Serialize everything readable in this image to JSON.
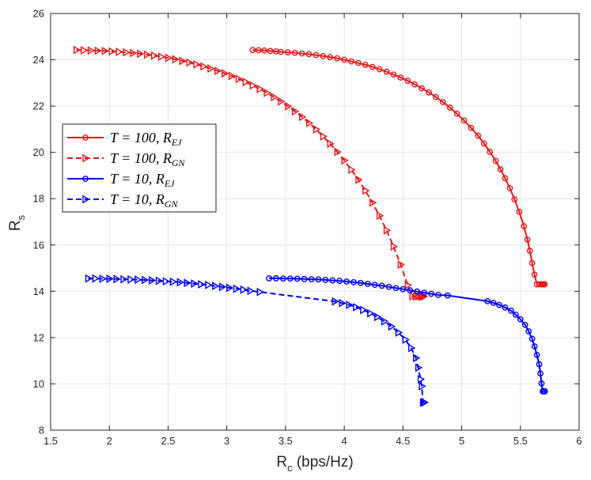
{
  "chart_data": {
    "type": "line",
    "xlabel": {
      "main": "R",
      "sub": "c",
      "suffix": " (bps/Hz)"
    },
    "ylabel": {
      "main": "R",
      "sub": "s"
    },
    "xlim": [
      1.5,
      6
    ],
    "ylim": [
      8,
      26
    ],
    "xticks": [
      1.5,
      2,
      2.5,
      3,
      3.5,
      4,
      4.5,
      5,
      5.5,
      6
    ],
    "xtick_labels": [
      "1.5",
      "2",
      "2.5",
      "3",
      "3.5",
      "4",
      "4.5",
      "5",
      "5.5",
      "6"
    ],
    "yticks": [
      8,
      10,
      12,
      14,
      16,
      18,
      20,
      22,
      24,
      26
    ],
    "ytick_labels": [
      "8",
      "10",
      "12",
      "14",
      "16",
      "18",
      "20",
      "22",
      "24",
      "26"
    ],
    "grid": true,
    "legend_position": "middle-left",
    "series": [
      {
        "label_prefix": "T = 100, R",
        "label_sub": "EJ",
        "color": "#e31a1c",
        "dash": "solid",
        "marker": "circle",
        "x": [
          3.22,
          3.27,
          3.32,
          3.37,
          3.42,
          3.46,
          3.52,
          3.58,
          3.64,
          3.7,
          3.76,
          3.82,
          3.88,
          3.94,
          4.0,
          4.06,
          4.12,
          4.18,
          4.24,
          4.3,
          4.36,
          4.42,
          4.48,
          4.54,
          4.6,
          4.66,
          4.72,
          4.78,
          4.84,
          4.9,
          4.96,
          5.02,
          5.08,
          5.14,
          5.19,
          5.24,
          5.29,
          5.33,
          5.37,
          5.41,
          5.45,
          5.49,
          5.53,
          5.56,
          5.58,
          5.6,
          5.62,
          5.64,
          5.66,
          5.68,
          5.69,
          5.7,
          5.703,
          5.705,
          5.706
        ],
        "y": [
          24.42,
          24.41,
          24.4,
          24.38,
          24.36,
          24.34,
          24.32,
          24.3,
          24.27,
          24.24,
          24.2,
          24.16,
          24.11,
          24.06,
          24.0,
          23.93,
          23.86,
          23.78,
          23.69,
          23.59,
          23.48,
          23.36,
          23.23,
          23.09,
          22.94,
          22.77,
          22.59,
          22.39,
          22.17,
          21.93,
          21.67,
          21.38,
          21.06,
          20.72,
          20.38,
          20.02,
          19.63,
          19.27,
          18.88,
          18.45,
          17.97,
          17.43,
          16.81,
          16.23,
          15.75,
          15.22,
          14.72,
          14.3,
          14.3,
          14.3,
          14.3,
          14.3,
          14.3,
          14.3,
          14.3
        ]
      },
      {
        "label_prefix": "T = 100, R",
        "label_sub": "GN",
        "color": "#e31a1c",
        "dash": "dashed",
        "marker": "triangle-right",
        "x": [
          1.72,
          1.78,
          1.84,
          1.9,
          1.96,
          2.02,
          2.08,
          2.14,
          2.2,
          2.26,
          2.32,
          2.38,
          2.44,
          2.5,
          2.56,
          2.62,
          2.68,
          2.74,
          2.8,
          2.86,
          2.92,
          2.98,
          3.04,
          3.1,
          3.16,
          3.22,
          3.28,
          3.34,
          3.4,
          3.46,
          3.52,
          3.58,
          3.64,
          3.7,
          3.76,
          3.82,
          3.88,
          3.94,
          4.0,
          4.06,
          4.12,
          4.18,
          4.24,
          4.3,
          4.36,
          4.42,
          4.48,
          4.54,
          4.58,
          4.61,
          4.63,
          4.65,
          4.66,
          4.67,
          4.675,
          4.678
        ],
        "y": [
          24.42,
          24.41,
          24.4,
          24.39,
          24.38,
          24.36,
          24.34,
          24.32,
          24.29,
          24.26,
          24.22,
          24.18,
          24.13,
          24.08,
          24.02,
          23.95,
          23.88,
          23.8,
          23.71,
          23.62,
          23.52,
          23.41,
          23.3,
          23.17,
          23.04,
          22.89,
          22.74,
          22.57,
          22.39,
          22.2,
          21.99,
          21.77,
          21.53,
          21.27,
          20.99,
          20.69,
          20.37,
          20.02,
          19.65,
          19.25,
          18.82,
          18.35,
          17.83,
          17.26,
          16.63,
          15.93,
          15.15,
          14.27,
          13.78,
          13.78,
          13.78,
          13.78,
          13.78,
          13.78,
          13.78,
          13.78
        ]
      },
      {
        "label_prefix": "T = 10, R",
        "label_sub": "EJ",
        "color": "#0000ff",
        "dash": "solid",
        "marker": "circle",
        "x": [
          3.36,
          3.42,
          3.48,
          3.54,
          3.6,
          3.66,
          3.72,
          3.78,
          3.84,
          3.9,
          3.96,
          4.02,
          4.08,
          4.14,
          4.2,
          4.26,
          4.32,
          4.38,
          4.44,
          4.5,
          4.56,
          4.62,
          4.68,
          4.74,
          4.8,
          4.88,
          5.22,
          5.27,
          5.32,
          5.37,
          5.42,
          5.46,
          5.5,
          5.54,
          5.57,
          5.6,
          5.62,
          5.64,
          5.66,
          5.67,
          5.68,
          5.69,
          5.7,
          5.705,
          5.708
        ],
        "y": [
          14.56,
          14.56,
          14.55,
          14.55,
          14.54,
          14.53,
          14.52,
          14.51,
          14.49,
          14.47,
          14.45,
          14.42,
          14.39,
          14.36,
          14.32,
          14.28,
          14.24,
          14.19,
          14.14,
          14.09,
          14.04,
          13.99,
          13.94,
          13.89,
          13.84,
          13.82,
          13.57,
          13.5,
          13.41,
          13.3,
          13.16,
          12.99,
          12.79,
          12.55,
          12.27,
          11.95,
          11.62,
          11.25,
          10.85,
          10.45,
          10.02,
          9.68,
          9.68,
          9.68,
          9.68
        ]
      },
      {
        "label_prefix": "T = 10, R",
        "label_sub": "GN",
        "color": "#0000ff",
        "dash": "dashed",
        "marker": "triangle-right",
        "x": [
          1.82,
          1.88,
          1.94,
          2.0,
          2.06,
          2.12,
          2.18,
          2.24,
          2.3,
          2.36,
          2.42,
          2.48,
          2.54,
          2.6,
          2.66,
          2.72,
          2.78,
          2.84,
          2.9,
          2.96,
          3.02,
          3.08,
          3.14,
          3.2,
          3.28,
          3.92,
          3.98,
          4.04,
          4.1,
          4.16,
          4.22,
          4.28,
          4.34,
          4.4,
          4.46,
          4.52,
          4.57,
          4.61,
          4.63,
          4.65,
          4.66,
          4.67,
          4.675,
          4.68,
          4.682
        ],
        "y": [
          14.55,
          14.55,
          14.54,
          14.54,
          14.53,
          14.52,
          14.51,
          14.5,
          14.49,
          14.47,
          14.45,
          14.43,
          14.41,
          14.39,
          14.36,
          14.33,
          14.3,
          14.27,
          14.23,
          14.19,
          14.15,
          14.11,
          14.07,
          14.02,
          13.97,
          13.56,
          13.49,
          13.41,
          13.31,
          13.19,
          13.05,
          12.89,
          12.7,
          12.48,
          12.22,
          11.91,
          11.55,
          11.12,
          10.7,
          10.2,
          9.9,
          9.2,
          9.2,
          9.2,
          9.2
        ]
      }
    ]
  }
}
